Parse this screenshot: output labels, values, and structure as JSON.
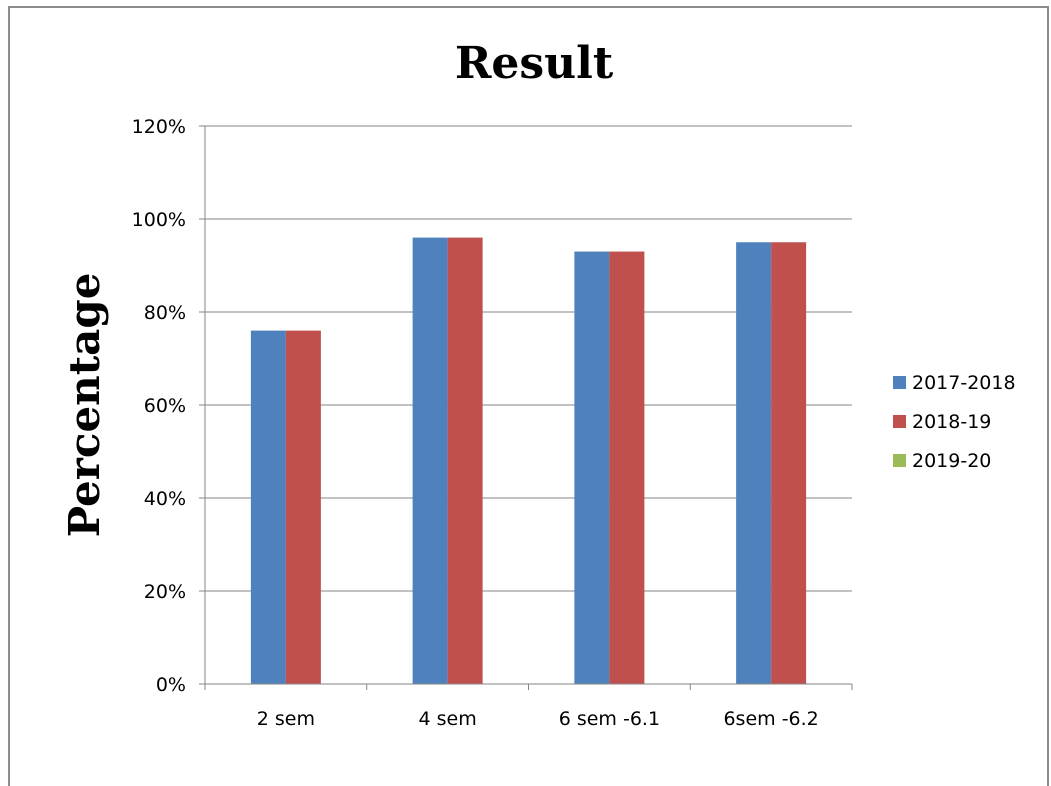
{
  "chart_data": {
    "type": "bar",
    "title": "Result",
    "xlabel": "",
    "ylabel": "Percentage",
    "categories": [
      "2 sem",
      "4 sem",
      "6 sem -6.1",
      "6sem -6.2"
    ],
    "series": [
      {
        "name": "2017-2018",
        "color": "#4f81bd",
        "values": [
          76,
          96,
          93,
          95
        ]
      },
      {
        "name": "2018-19",
        "color": "#c0504d",
        "values": [
          76,
          96,
          93,
          95
        ]
      },
      {
        "name": "2019-20",
        "color": "#9bbb59",
        "values": [
          0,
          0,
          0,
          0
        ]
      }
    ],
    "yticks": [
      "0%",
      "20%",
      "40%",
      "60%",
      "80%",
      "100%",
      "120%"
    ],
    "ylim": [
      0,
      120
    ],
    "grid": true,
    "legend": "right"
  }
}
